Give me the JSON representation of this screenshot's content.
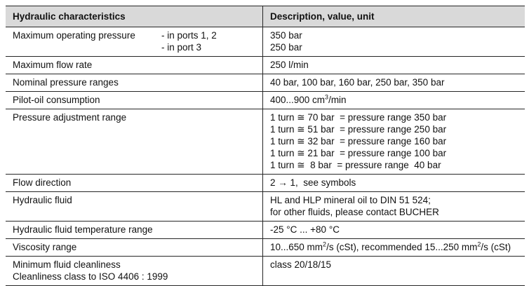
{
  "colors": {
    "header_bg": "#d9d9d9",
    "border": "#262626",
    "text": "#111111"
  },
  "table": {
    "header": {
      "col1": "Hydraulic characteristics",
      "col2": "Description, value, unit"
    },
    "rows": [
      {
        "name": "maximum-operating-pressure",
        "label_lines": [
          "Maximum operating pressure"
        ],
        "sub_lines": [
          "- in ports 1, 2",
          "- in port 3"
        ],
        "value_lines": [
          [
            "350 bar"
          ],
          [
            "250 bar"
          ]
        ]
      },
      {
        "name": "maximum-flow-rate",
        "label_lines": [
          "Maximum flow rate"
        ],
        "sub_lines": [],
        "value_lines": [
          [
            "250 l/min"
          ]
        ]
      },
      {
        "name": "nominal-pressure-ranges",
        "label_lines": [
          "Nominal pressure ranges"
        ],
        "sub_lines": [],
        "value_lines": [
          [
            "40 bar, 100 bar, 160 bar, 250 bar, 350 bar"
          ]
        ]
      },
      {
        "name": "pilot-oil-consumption",
        "label_lines": [
          "Pilot-oil consumption"
        ],
        "sub_lines": [],
        "value_lines": [
          [
            "400...900 cm",
            {
              "sup": "3"
            },
            "/min"
          ]
        ]
      },
      {
        "name": "pressure-adjustment-range",
        "label_lines": [
          "Pressure adjustment range"
        ],
        "sub_lines": [],
        "value_lines": [
          [
            "1 turn ≅ 70 bar  = pressure range 350 bar"
          ],
          [
            "1 turn ≅ 51 bar  = pressure range 250 bar"
          ],
          [
            "1 turn ≅ 32 bar  = pressure range 160 bar"
          ],
          [
            "1 turn ≅ 21 bar  = pressure range 100 bar"
          ],
          [
            "1 turn ≅  8 bar  = pressure range  40 bar"
          ]
        ]
      },
      {
        "name": "flow-direction",
        "label_lines": [
          "Flow direction"
        ],
        "sub_lines": [],
        "value_lines": [
          [
            "2 → 1,  see symbols"
          ]
        ]
      },
      {
        "name": "hydraulic-fluid",
        "label_lines": [
          "Hydraulic fluid"
        ],
        "sub_lines": [],
        "value_lines": [
          [
            "HL and HLP mineral oil to DIN 51 524;"
          ],
          [
            "for other fluids, please contact BUCHER"
          ]
        ]
      },
      {
        "name": "hydraulic-fluid-temperature-range",
        "label_lines": [
          "Hydraulic fluid temperature range"
        ],
        "sub_lines": [],
        "value_lines": [
          [
            "-25 °C ... +80 °C"
          ]
        ]
      },
      {
        "name": "viscosity-range",
        "label_lines": [
          "Viscosity range"
        ],
        "sub_lines": [],
        "value_lines": [
          [
            "10...650 mm",
            {
              "sup": "2"
            },
            "/s (cSt), recommended 15...250 mm",
            {
              "sup": "2"
            },
            "/s (cSt)"
          ]
        ]
      },
      {
        "name": "minimum-fluid-cleanliness",
        "label_lines": [
          "Minimum fluid cleanliness",
          "Cleanliness class to ISO 4406 : 1999"
        ],
        "sub_lines": [],
        "value_lines": [
          [
            "class 20/18/15"
          ]
        ]
      }
    ]
  }
}
